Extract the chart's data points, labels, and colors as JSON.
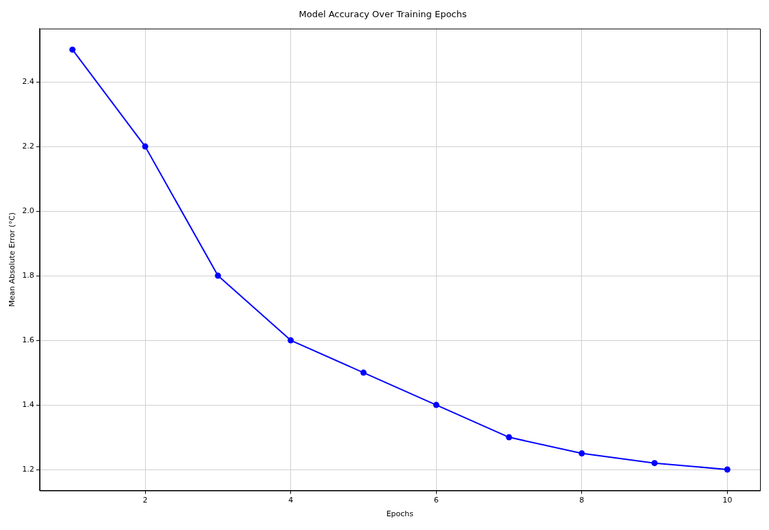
{
  "chart_data": {
    "type": "line",
    "title": "Model Accuracy Over Training Epochs",
    "xlabel": "Epochs",
    "ylabel": "Mean Absolute Error (°C)",
    "x": [
      1,
      2,
      3,
      4,
      5,
      6,
      7,
      8,
      9,
      10
    ],
    "series": [
      {
        "color": "#0000ff",
        "values": [
          2.5,
          2.2,
          1.8,
          1.6,
          1.5,
          1.4,
          1.3,
          1.25,
          1.22,
          1.2
        ]
      }
    ],
    "xlim": [
      0.55,
      10.45
    ],
    "xticks": [
      2,
      4,
      6,
      8,
      10
    ],
    "ylim": [
      1.135,
      2.565
    ],
    "yticks": [
      1.2,
      1.4,
      1.6,
      1.8,
      {
        "value": 2,
        "label": "2.0"
      },
      2.2,
      2.4
    ],
    "grid": true,
    "marker": "circle",
    "line_style": "solid",
    "legend": false
  }
}
